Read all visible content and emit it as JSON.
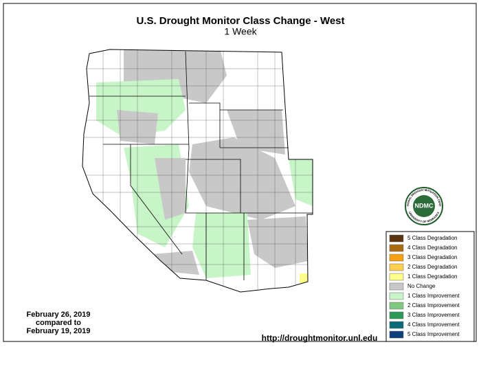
{
  "header": {
    "title": "U.S. Drought Monitor Class Change - West",
    "subtitle": "1 Week"
  },
  "logo": {
    "text": "NDMC",
    "ring_top": "NATIONAL DROUGHT MITIGATION CENTER",
    "ring_bottom": "UNIVERSITY OF NEBRASKA"
  },
  "legend": [
    {
      "label": "5 Class Degradation",
      "color": "#5a3410"
    },
    {
      "label": "4 Class Degradation",
      "color": "#a86b12"
    },
    {
      "label": "3 Class Degradation",
      "color": "#f5a011"
    },
    {
      "label": "2 Class Degradation",
      "color": "#fccf4c"
    },
    {
      "label": "1 Class Degradation",
      "color": "#fefe8a"
    },
    {
      "label": "No Change",
      "color": "#c8c8c8"
    },
    {
      "label": "1 Class Improvement",
      "color": "#c8f5c8"
    },
    {
      "label": "2 Class Improvement",
      "color": "#80c880"
    },
    {
      "label": "3 Class Improvement",
      "color": "#2e9a5a"
    },
    {
      "label": "4 Class Improvement",
      "color": "#0e6a78"
    },
    {
      "label": "5 Class Improvement",
      "color": "#0c3f7a"
    }
  ],
  "dates": {
    "current": "February 26, 2019",
    "middle": "compared to",
    "previous": "February 19, 2019"
  },
  "url": "http://droughtmonitor.unl.edu"
}
